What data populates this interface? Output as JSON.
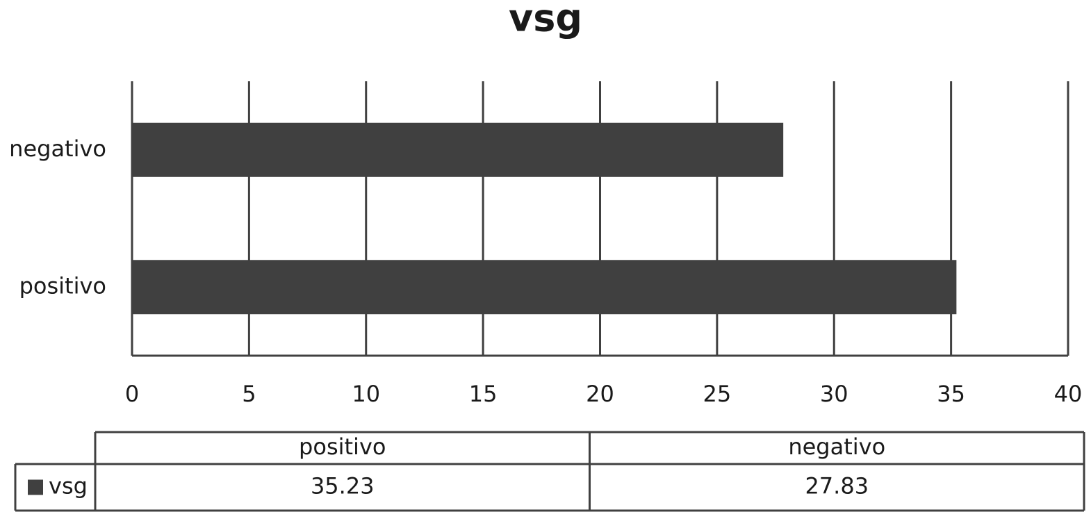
{
  "chart_data": {
    "type": "hbar",
    "title": "vsg",
    "categories": [
      "positivo",
      "negativo"
    ],
    "series": [
      {
        "name": "vsg",
        "color": "#404040",
        "values": [
          35.23,
          27.83
        ]
      }
    ],
    "xlim": [
      0,
      40
    ],
    "xticks": [
      0,
      5,
      10,
      15,
      20,
      25,
      30,
      35,
      40
    ],
    "grid": true,
    "data_table": true
  }
}
